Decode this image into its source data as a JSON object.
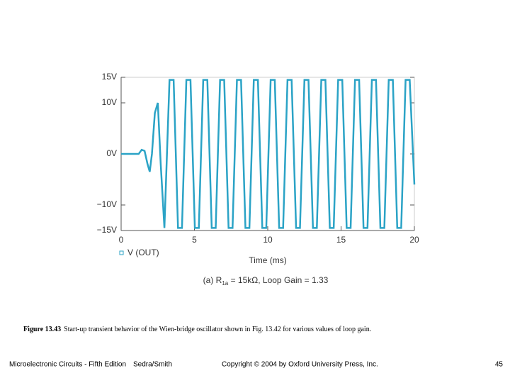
{
  "chart_data": {
    "type": "line",
    "xlabel": "Time (ms)",
    "x": [
      0,
      1.2,
      1.4,
      1.6,
      1.8,
      1.95,
      2.1,
      2.3,
      2.5,
      2.7,
      2.95,
      3.3,
      3.58,
      3.88,
      4.15,
      4.45,
      4.73,
      5.03,
      5.3,
      5.6,
      5.88,
      6.18,
      6.45,
      6.75,
      7.03,
      7.33,
      7.6,
      7.9,
      8.18,
      8.48,
      8.75,
      9.05,
      9.33,
      9.63,
      9.9,
      10.2,
      10.48,
      10.78,
      11.05,
      11.35,
      11.63,
      11.93,
      12.2,
      12.5,
      12.78,
      13.08,
      13.35,
      13.65,
      13.93,
      14.23,
      14.5,
      14.8,
      15.08,
      15.38,
      15.65,
      15.95,
      16.23,
      16.53,
      16.8,
      17.1,
      17.38,
      17.68,
      17.95,
      18.25,
      18.53,
      18.83,
      19.1,
      19.4,
      19.68,
      20
    ],
    "series": [
      {
        "name": "V (OUT)",
        "color": "#2ba3c6",
        "values": [
          0,
          0,
          0.8,
          0.6,
          -2,
          -3.5,
          0,
          8,
          10,
          -2,
          -14.5,
          14.5,
          14.5,
          -14.5,
          -14.5,
          14.5,
          14.5,
          -14.5,
          -14.5,
          14.5,
          14.5,
          -14.5,
          -14.5,
          14.5,
          14.5,
          -14.5,
          -14.5,
          14.5,
          14.5,
          -14.5,
          -14.5,
          14.5,
          14.5,
          -14.5,
          -14.5,
          14.5,
          14.5,
          -14.5,
          -14.5,
          14.5,
          14.5,
          -14.5,
          -14.5,
          14.5,
          14.5,
          -14.5,
          -14.5,
          14.5,
          14.5,
          -14.5,
          -14.5,
          14.5,
          14.5,
          -14.5,
          -14.5,
          14.5,
          14.5,
          -14.5,
          -14.5,
          14.5,
          14.5,
          -14.5,
          -14.5,
          14.5,
          14.5,
          -14.5,
          -14.5,
          14.5,
          14.5,
          -6
        ]
      }
    ],
    "xlim": [
      0,
      20
    ],
    "xticks": [
      0,
      5,
      10,
      15,
      20
    ],
    "ylim": [
      -15,
      15
    ],
    "yticks": [
      {
        "value": 15,
        "label": "15V"
      },
      {
        "value": 10,
        "label": "10V"
      },
      {
        "value": 0,
        "label": "0V"
      },
      {
        "value": -10,
        "label": "−10V"
      },
      {
        "value": -15,
        "label": "−15V"
      }
    ],
    "subtitle": {
      "prefix": "(a) R",
      "subscript": "1a",
      "suffix": " = 15kΩ, Loop Gain = 1.33"
    }
  },
  "figure_caption": {
    "label": "Figure 13.43",
    "text": "Start-up transient behavior of the Wien-bridge oscillator shown in Fig. 13.42 for various values of loop gain."
  },
  "footer": {
    "book": "Microelectronic Circuits - Fifth Edition",
    "authors": "Sedra/Smith",
    "copyright": "Copyright © 2004 by Oxford University Press, Inc.",
    "page": "45"
  }
}
